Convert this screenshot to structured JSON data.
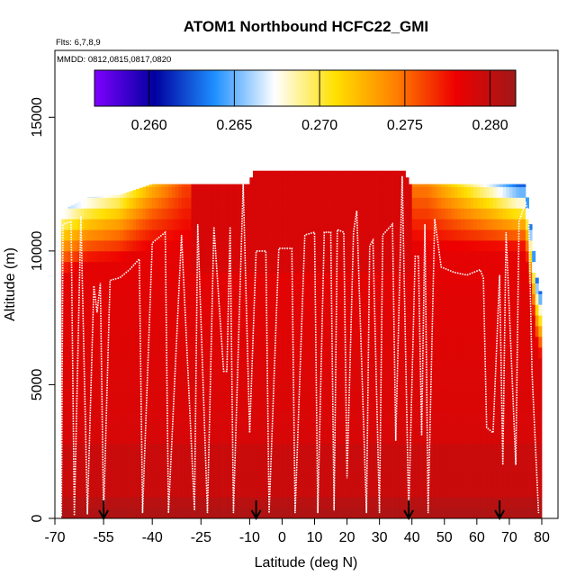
{
  "chart_data": {
    "type": "heatmap",
    "title": "ATOM1 Northbound HCFC22_GMI",
    "subtitle_flights": "Flts: 6,7,8,9",
    "subtitle_dates": "MMDD: 0812,0815,0817,0820",
    "xlabel": "Latitude (deg N)",
    "ylabel": "Altitude (m)",
    "xlim": [
      -70,
      85
    ],
    "ylim": [
      0,
      17500
    ],
    "x_ticks": [
      -70,
      -55,
      -40,
      -25,
      -10,
      0,
      10,
      20,
      30,
      40,
      50,
      60,
      70,
      80
    ],
    "x_tick_labels": [
      "-70",
      "-55",
      "-40",
      "-25",
      "-10",
      "0",
      "10",
      "20",
      "30",
      "40",
      "50",
      "60",
      "70",
      "80"
    ],
    "y_ticks": [
      0,
      5000,
      10000,
      15000
    ],
    "y_tick_labels": [
      "0",
      "5000",
      "10000",
      "15000"
    ],
    "colorbar": {
      "range": [
        0.2568,
        0.2815
      ],
      "ticks": [
        0.26,
        0.265,
        0.27,
        0.275,
        0.28
      ],
      "tick_labels": [
        "0.260",
        "0.265",
        "0.270",
        "0.275",
        "0.280"
      ],
      "stops": [
        "#7f00ff",
        "#0000a0",
        "#1e90ff",
        "#ffffff",
        "#ffe000",
        "#ff8000",
        "#ee0000",
        "#a01818"
      ]
    },
    "top_profile": [
      {
        "x": -68,
        "top": 11500
      },
      {
        "x": -60,
        "top": 12000
      },
      {
        "x": -50,
        "top": 12100
      },
      {
        "x": -40,
        "top": 12500
      },
      {
        "x": -30,
        "top": 12500
      },
      {
        "x": -10,
        "top": 12500
      },
      {
        "x": -9,
        "top": 13000
      },
      {
        "x": 38,
        "top": 13000
      },
      {
        "x": 39,
        "top": 12500
      },
      {
        "x": 60,
        "top": 12500
      },
      {
        "x": 75,
        "top": 12500
      },
      {
        "x": 76,
        "top": 11500
      },
      {
        "x": 79,
        "top": 8500
      }
    ],
    "upper_layer_values": [
      {
        "x": -60,
        "alt": 11800,
        "value": 0.266
      },
      {
        "x": -50,
        "alt": 11800,
        "value": 0.268
      },
      {
        "x": -40,
        "alt": 11900,
        "value": 0.272
      },
      {
        "x": -30,
        "alt": 12100,
        "value": 0.276
      },
      {
        "x": 45,
        "alt": 12200,
        "value": 0.274
      },
      {
        "x": 55,
        "alt": 12100,
        "value": 0.27
      },
      {
        "x": 65,
        "alt": 12000,
        "value": 0.266
      },
      {
        "x": 73,
        "alt": 11900,
        "value": 0.262
      }
    ],
    "flight_track": [
      [
        -68,
        100
      ],
      [
        -67.5,
        11000
      ],
      [
        -65,
        11100
      ],
      [
        -64,
        100
      ],
      [
        -62,
        11300
      ],
      [
        -60,
        150
      ],
      [
        -58,
        8700
      ],
      [
        -57,
        7700
      ],
      [
        -56,
        8800
      ],
      [
        -55,
        100
      ],
      [
        -53,
        8900
      ],
      [
        -50,
        9000
      ],
      [
        -47,
        9300
      ],
      [
        -44,
        9700
      ],
      [
        -43,
        200
      ],
      [
        -40,
        10300
      ],
      [
        -36,
        10700
      ],
      [
        -35,
        200
      ],
      [
        -31,
        10600
      ],
      [
        -27,
        300
      ],
      [
        -26,
        11000
      ],
      [
        -23,
        200
      ],
      [
        -21,
        10900
      ],
      [
        -18,
        5500
      ],
      [
        -17,
        5500
      ],
      [
        -16,
        10900
      ],
      [
        -15,
        200
      ],
      [
        -12,
        12500
      ],
      [
        -10,
        3200
      ],
      [
        -8,
        10000
      ],
      [
        -5,
        10000
      ],
      [
        -4,
        200
      ],
      [
        -1,
        10100
      ],
      [
        3,
        10100
      ],
      [
        4,
        200
      ],
      [
        7,
        10600
      ],
      [
        10,
        10700
      ],
      [
        11,
        200
      ],
      [
        13,
        10700
      ],
      [
        15,
        10700
      ],
      [
        16,
        300
      ],
      [
        17,
        10800
      ],
      [
        19,
        10700
      ],
      [
        20,
        1500
      ],
      [
        22,
        10700
      ],
      [
        23,
        11500
      ],
      [
        26,
        200
      ],
      [
        27,
        10200
      ],
      [
        28,
        10400
      ],
      [
        30,
        200
      ],
      [
        31,
        10600
      ],
      [
        34,
        11000
      ],
      [
        35,
        2900
      ],
      [
        37,
        12800
      ],
      [
        39,
        200
      ],
      [
        41,
        9800
      ],
      [
        42,
        9800
      ],
      [
        43,
        3100
      ],
      [
        44,
        11000
      ],
      [
        45,
        200
      ],
      [
        47,
        11200
      ],
      [
        49,
        9400
      ],
      [
        53,
        9200
      ],
      [
        57,
        9100
      ],
      [
        61,
        9300
      ],
      [
        62,
        9000
      ],
      [
        63,
        3400
      ],
      [
        65,
        3200
      ],
      [
        67,
        9100
      ],
      [
        68,
        2000
      ],
      [
        69,
        10700
      ],
      [
        72,
        2000
      ],
      [
        73,
        11100
      ],
      [
        75,
        11800
      ],
      [
        76,
        11400
      ],
      [
        77,
        5500
      ],
      [
        79,
        200
      ]
    ],
    "arrow_latitudes": [
      -55,
      -8,
      39,
      67
    ],
    "legend": "none",
    "grid": false
  }
}
